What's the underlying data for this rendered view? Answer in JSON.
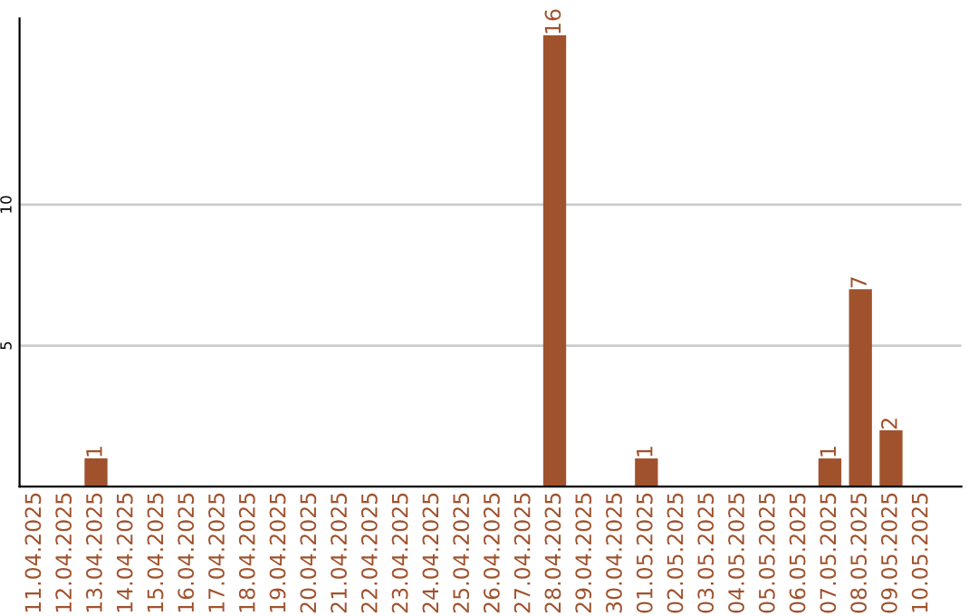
{
  "chart_data": {
    "type": "bar",
    "categories": [
      "11.04.2025",
      "12.04.2025",
      "13.04.2025",
      "14.04.2025",
      "15.04.2025",
      "16.04.2025",
      "17.04.2025",
      "18.04.2025",
      "19.04.2025",
      "20.04.2025",
      "21.04.2025",
      "22.04.2025",
      "23.04.2025",
      "24.04.2025",
      "25.04.2025",
      "26.04.2025",
      "27.04.2025",
      "28.04.2025",
      "29.04.2025",
      "30.04.2025",
      "01.05.2025",
      "02.05.2025",
      "03.05.2025",
      "04.05.2025",
      "05.05.2025",
      "06.05.2025",
      "07.05.2025",
      "08.05.2025",
      "09.05.2025",
      "10.05.2025"
    ],
    "values": [
      0,
      0,
      1,
      0,
      0,
      0,
      0,
      0,
      0,
      0,
      0,
      0,
      0,
      0,
      0,
      0,
      0,
      16,
      0,
      0,
      1,
      0,
      0,
      0,
      0,
      0,
      1,
      7,
      2,
      0
    ],
    "value_labels": [
      null,
      null,
      "1",
      null,
      null,
      null,
      null,
      null,
      null,
      null,
      null,
      null,
      null,
      null,
      null,
      null,
      null,
      "16",
      null,
      null,
      "1",
      null,
      null,
      null,
      null,
      null,
      "1",
      "7",
      "2",
      null
    ],
    "color": "#a0522d",
    "ylim": [
      0,
      16.6
    ],
    "yticks": [
      5,
      10
    ],
    "grid": "y",
    "legend": false
  }
}
